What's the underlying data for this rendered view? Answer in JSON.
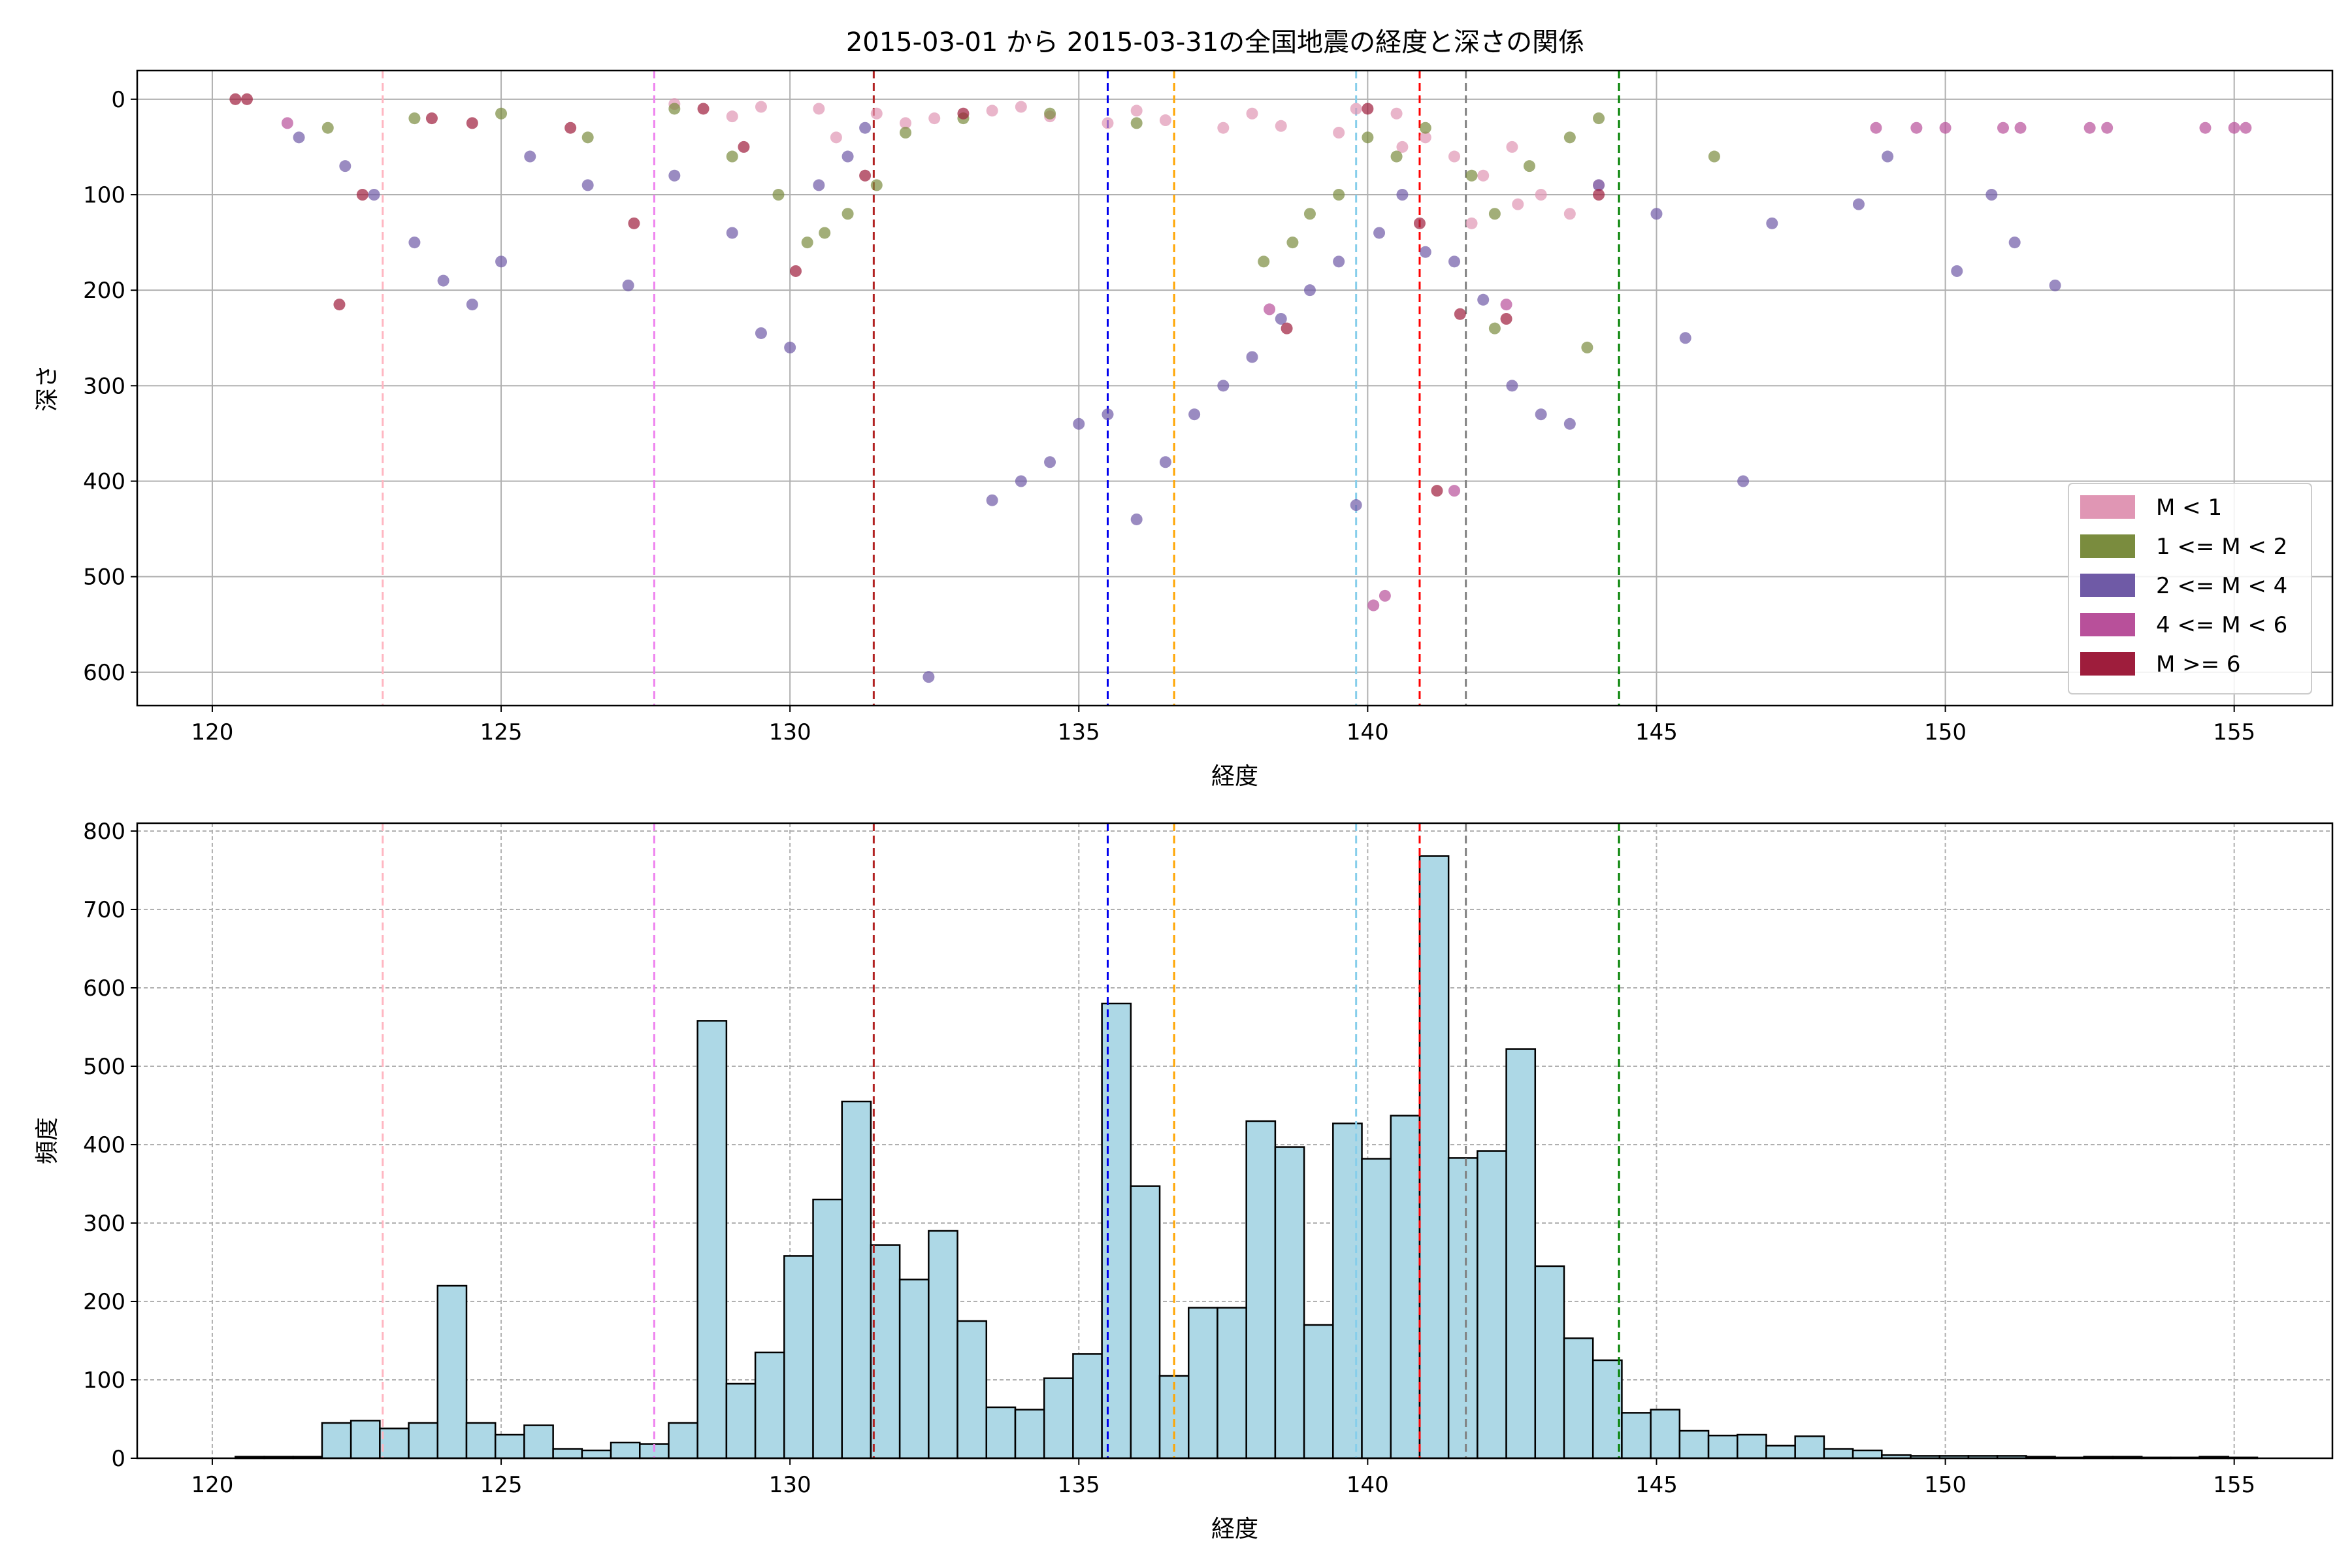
{
  "chart_data": [
    {
      "type": "scatter",
      "title": "2015-03-01 から 2015-03-31の全国地震の経度と深さの関係",
      "xlabel": "経度",
      "ylabel": "深さ",
      "xlim": [
        118.7,
        156.7
      ],
      "ylim": [
        635,
        -30
      ],
      "y_inverted": true,
      "xticks": [
        120,
        125,
        130,
        135,
        140,
        145,
        150,
        155
      ],
      "yticks": [
        0,
        100,
        200,
        300,
        400,
        500,
        600
      ],
      "grid": true,
      "legend_position": "lower-right",
      "legend": [
        "M < 1",
        "1 <= M < 2",
        "2 <= M < 4",
        "4 <= M < 6",
        "M >= 6"
      ],
      "series": [
        {
          "name": "M < 1",
          "color": "#e096b4",
          "points": [
            [
              128.0,
              5
            ],
            [
              129.5,
              8
            ],
            [
              130.5,
              10
            ],
            [
              131.5,
              15
            ],
            [
              132.5,
              20
            ],
            [
              133.5,
              12
            ],
            [
              134.5,
              18
            ],
            [
              135.5,
              25
            ],
            [
              136.5,
              22
            ],
            [
              137.5,
              30
            ],
            [
              138.5,
              28
            ],
            [
              139.5,
              35
            ],
            [
              140.5,
              15
            ],
            [
              141.0,
              40
            ],
            [
              141.5,
              60
            ],
            [
              142.0,
              80
            ],
            [
              142.5,
              50
            ],
            [
              143.0,
              100
            ],
            [
              143.5,
              120
            ],
            [
              144.0,
              90
            ],
            [
              139.8,
              10
            ],
            [
              138.0,
              15
            ],
            [
              136.0,
              12
            ],
            [
              134.0,
              8
            ],
            [
              132.0,
              25
            ],
            [
              130.8,
              40
            ],
            [
              129.0,
              18
            ],
            [
              141.8,
              130
            ],
            [
              142.6,
              110
            ],
            [
              140.6,
              50
            ]
          ]
        },
        {
          "name": "1 <= M < 2",
          "color": "#7a8c3e",
          "points": [
            [
              122.0,
              30
            ],
            [
              123.5,
              20
            ],
            [
              125.0,
              15
            ],
            [
              126.5,
              40
            ],
            [
              128.0,
              10
            ],
            [
              129.0,
              60
            ],
            [
              129.8,
              100
            ],
            [
              130.3,
              150
            ],
            [
              130.6,
              140
            ],
            [
              131.0,
              120
            ],
            [
              131.5,
              90
            ],
            [
              132.0,
              35
            ],
            [
              133.0,
              20
            ],
            [
              134.5,
              15
            ],
            [
              136.0,
              25
            ],
            [
              138.2,
              170
            ],
            [
              138.7,
              150
            ],
            [
              139.0,
              120
            ],
            [
              139.5,
              100
            ],
            [
              140.0,
              40
            ],
            [
              140.5,
              60
            ],
            [
              141.0,
              30
            ],
            [
              141.8,
              80
            ],
            [
              142.2,
              120
            ],
            [
              142.8,
              70
            ],
            [
              143.5,
              40
            ],
            [
              144.0,
              20
            ],
            [
              143.8,
              260
            ],
            [
              142.2,
              240
            ],
            [
              146.0,
              60
            ]
          ]
        },
        {
          "name": "2 <= M < 4",
          "color": "#6f5aa6",
          "points": [
            [
              121.5,
              40
            ],
            [
              122.3,
              70
            ],
            [
              122.8,
              100
            ],
            [
              123.5,
              150
            ],
            [
              124.0,
              190
            ],
            [
              124.5,
              215
            ],
            [
              125.0,
              170
            ],
            [
              125.5,
              60
            ],
            [
              126.5,
              90
            ],
            [
              127.2,
              195
            ],
            [
              128.0,
              80
            ],
            [
              129.0,
              140
            ],
            [
              129.5,
              245
            ],
            [
              130.0,
              260
            ],
            [
              130.5,
              90
            ],
            [
              131.0,
              60
            ],
            [
              131.3,
              30
            ],
            [
              133.5,
              420
            ],
            [
              134.0,
              400
            ],
            [
              134.5,
              380
            ],
            [
              135.0,
              340
            ],
            [
              135.5,
              330
            ],
            [
              136.0,
              440
            ],
            [
              136.5,
              380
            ],
            [
              137.0,
              330
            ],
            [
              137.5,
              300
            ],
            [
              138.0,
              270
            ],
            [
              138.5,
              230
            ],
            [
              139.0,
              200
            ],
            [
              139.5,
              170
            ],
            [
              139.8,
              425
            ],
            [
              140.2,
              140
            ],
            [
              140.6,
              100
            ],
            [
              141.0,
              160
            ],
            [
              141.5,
              170
            ],
            [
              142.0,
              210
            ],
            [
              142.5,
              300
            ],
            [
              143.0,
              330
            ],
            [
              143.5,
              340
            ],
            [
              144.0,
              90
            ],
            [
              145.0,
              120
            ],
            [
              145.5,
              250
            ],
            [
              146.5,
              400
            ],
            [
              147.0,
              130
            ],
            [
              148.5,
              110
            ],
            [
              149.0,
              60
            ],
            [
              150.2,
              180
            ],
            [
              150.8,
              100
            ],
            [
              151.2,
              150
            ],
            [
              151.9,
              195
            ],
            [
              132.4,
              605
            ]
          ]
        },
        {
          "name": "4 <= M < 6",
          "color": "#b8509a",
          "points": [
            [
              121.3,
              25
            ],
            [
              138.3,
              220
            ],
            [
              140.1,
              530
            ],
            [
              140.3,
              520
            ],
            [
              141.5,
              410
            ],
            [
              142.4,
              215
            ],
            [
              148.8,
              30
            ],
            [
              149.5,
              30
            ],
            [
              150.0,
              30
            ],
            [
              151.0,
              30
            ],
            [
              151.3,
              30
            ],
            [
              152.5,
              30
            ],
            [
              152.8,
              30
            ],
            [
              154.5,
              30
            ],
            [
              155.0,
              30
            ],
            [
              155.2,
              30
            ]
          ]
        },
        {
          "name": "M >= 6",
          "color": "#9e1d3c",
          "points": [
            [
              120.4,
              0
            ],
            [
              120.6,
              0
            ],
            [
              122.2,
              215
            ],
            [
              122.6,
              100
            ],
            [
              123.8,
              20
            ],
            [
              124.5,
              25
            ],
            [
              126.2,
              30
            ],
            [
              127.3,
              130
            ],
            [
              128.5,
              10
            ],
            [
              130.1,
              180
            ],
            [
              131.3,
              80
            ],
            [
              133.0,
              15
            ],
            [
              140.9,
              130
            ],
            [
              141.2,
              410
            ],
            [
              141.6,
              225
            ],
            [
              142.4,
              230
            ],
            [
              144.0,
              100
            ],
            [
              138.6,
              240
            ],
            [
              140.0,
              10
            ],
            [
              129.2,
              50
            ]
          ]
        }
      ],
      "reference_lines": [
        {
          "x": 122.95,
          "color": "#ffb6c1"
        },
        {
          "x": 127.65,
          "color": "#ee82ee"
        },
        {
          "x": 131.45,
          "color": "#b22222"
        },
        {
          "x": 135.5,
          "color": "#0000ee"
        },
        {
          "x": 136.65,
          "color": "#ffa500"
        },
        {
          "x": 139.8,
          "color": "#87ceeb"
        },
        {
          "x": 140.9,
          "color": "#ff0000"
        },
        {
          "x": 141.7,
          "color": "#808080"
        },
        {
          "x": 144.35,
          "color": "#008000"
        }
      ]
    },
    {
      "type": "bar",
      "title": "",
      "xlabel": "経度",
      "ylabel": "頻度",
      "xlim": [
        118.7,
        156.7
      ],
      "ylim": [
        0,
        810
      ],
      "xticks": [
        120,
        125,
        130,
        135,
        140,
        145,
        150,
        155
      ],
      "yticks": [
        0,
        100,
        200,
        300,
        400,
        500,
        600,
        700,
        800
      ],
      "grid": true,
      "bar_color": "#add8e6",
      "bin_edges_start": 120.4,
      "bin_width": 0.5,
      "values": [
        2,
        2,
        2,
        45,
        48,
        38,
        45,
        220,
        45,
        30,
        42,
        12,
        10,
        20,
        18,
        45,
        558,
        95,
        135,
        258,
        330,
        455,
        272,
        228,
        290,
        175,
        65,
        62,
        102,
        133,
        580,
        347,
        105,
        192,
        192,
        430,
        397,
        170,
        427,
        382,
        437,
        768,
        383,
        392,
        522,
        245,
        153,
        125,
        58,
        62,
        35,
        29,
        30,
        16,
        28,
        12,
        10,
        4,
        3,
        3,
        3,
        3,
        2,
        1,
        2,
        2,
        1,
        1,
        2,
        1
      ]
    }
  ]
}
